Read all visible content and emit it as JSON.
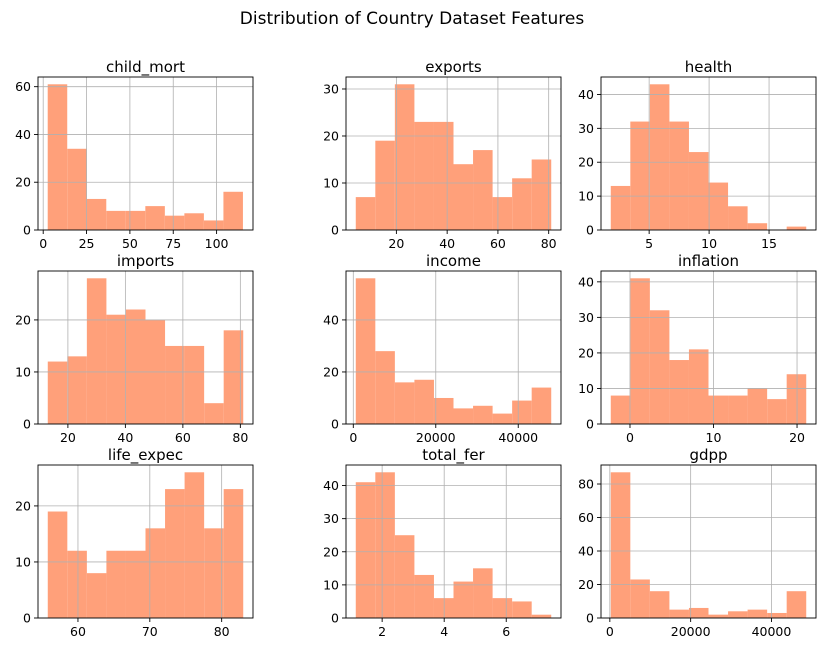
{
  "title": "Distribution of Country Dataset Features",
  "colors": {
    "bar": "#ffa07a",
    "grid": "#b0b0b0",
    "axis": "#000000"
  },
  "chart_data": [
    {
      "type": "bar",
      "title": "child_mort",
      "grid": true,
      "edges": [
        2.6,
        13.86,
        25.12,
        36.38,
        47.64,
        58.9,
        70.16,
        81.42,
        92.68,
        103.94,
        115.2
      ],
      "values": [
        61,
        34,
        13,
        8,
        8,
        10,
        6,
        7,
        4,
        16
      ],
      "xlim": [
        -3,
        121
      ],
      "ylim": [
        0,
        64.05
      ],
      "xticks": [
        0,
        25,
        50,
        75,
        100
      ],
      "yticks": [
        0,
        20,
        40,
        60
      ]
    },
    {
      "type": "bar",
      "title": "exports",
      "grid": true,
      "edges": [
        4.0,
        11.7,
        19.4,
        27.1,
        34.8,
        42.5,
        50.2,
        57.9,
        65.6,
        73.3,
        81.0
      ],
      "values": [
        7,
        19,
        31,
        23,
        23,
        14,
        17,
        7,
        11,
        15
      ],
      "xlim": [
        0.15,
        84.85
      ],
      "ylim": [
        0,
        32.55
      ],
      "xticks": [
        20,
        40,
        60,
        80
      ],
      "yticks": [
        0,
        10,
        20,
        30
      ]
    },
    {
      "type": "bar",
      "title": "health",
      "grid": true,
      "edges": [
        1.8,
        3.43,
        5.06,
        6.69,
        8.32,
        9.95,
        11.58,
        13.21,
        14.84,
        16.47,
        18.1
      ],
      "values": [
        13,
        32,
        43,
        32,
        23,
        14,
        7,
        2,
        0,
        1
      ],
      "xlim": [
        0.985,
        18.915
      ],
      "ylim": [
        0,
        45.15
      ],
      "xticks": [
        5,
        10,
        15
      ],
      "yticks": [
        0,
        10,
        20,
        30,
        40
      ]
    },
    {
      "type": "bar",
      "title": "imports",
      "grid": true,
      "edges": [
        13.0,
        19.8,
        26.6,
        33.4,
        40.2,
        47.0,
        53.8,
        60.6,
        67.4,
        74.2,
        81.0
      ],
      "values": [
        12,
        13,
        28,
        21,
        22,
        20,
        15,
        15,
        4,
        18
      ],
      "xlim": [
        9.6,
        84.4
      ],
      "ylim": [
        0,
        29.4
      ],
      "xticks": [
        20,
        40,
        60,
        80
      ],
      "yticks": [
        0,
        10,
        20
      ]
    },
    {
      "type": "bar",
      "title": "income",
      "grid": true,
      "edges": [
        600,
        5340,
        10080,
        14820,
        19560,
        24300,
        29040,
        33780,
        38520,
        43260,
        48000
      ],
      "values": [
        56,
        28,
        16,
        17,
        10,
        6,
        7,
        4,
        9,
        14
      ],
      "xlim": [
        -1770,
        50370
      ],
      "ylim": [
        0,
        58.8
      ],
      "xticks": [
        0,
        20000,
        40000
      ],
      "yticks": [
        0,
        20,
        40
      ]
    },
    {
      "type": "bar",
      "title": "inflation",
      "grid": true,
      "edges": [
        -2.3,
        0.04,
        2.38,
        4.72,
        7.06,
        9.4,
        11.74,
        14.08,
        16.42,
        18.76,
        21.1
      ],
      "values": [
        8,
        41,
        32,
        18,
        21,
        8,
        8,
        10,
        7,
        14
      ],
      "xlim": [
        -3.47,
        22.27
      ],
      "ylim": [
        0,
        43.05
      ],
      "xticks": [
        0,
        10,
        20
      ],
      "yticks": [
        0,
        10,
        20,
        30,
        40
      ]
    },
    {
      "type": "bar",
      "title": "life_expec",
      "grid": true,
      "edges": [
        55.8,
        58.52,
        61.24,
        63.96,
        66.68,
        69.4,
        72.12,
        74.84,
        77.56,
        80.28,
        83.0
      ],
      "values": [
        19,
        12,
        8,
        12,
        12,
        16,
        23,
        26,
        16,
        23
      ],
      "xlim": [
        54.44,
        84.36
      ],
      "ylim": [
        0,
        27.3
      ],
      "xticks": [
        60,
        70,
        80
      ],
      "yticks": [
        0,
        10,
        20
      ]
    },
    {
      "type": "bar",
      "title": "total_fer",
      "grid": true,
      "edges": [
        1.15,
        1.78,
        2.41,
        3.04,
        3.67,
        4.3,
        4.93,
        5.56,
        6.19,
        6.82,
        7.45
      ],
      "values": [
        41,
        44,
        25,
        13,
        6,
        11,
        15,
        6,
        5,
        1
      ],
      "xlim": [
        0.835,
        7.765
      ],
      "ylim": [
        0,
        46.2
      ],
      "xticks": [
        2,
        4,
        6
      ],
      "yticks": [
        0,
        10,
        20,
        30,
        40
      ]
    },
    {
      "type": "bar",
      "title": "gdpp",
      "grid": true,
      "edges": [
        231,
        5068,
        9905,
        14742,
        19579,
        24416,
        29253,
        34090,
        38927,
        43764,
        48601
      ],
      "values": [
        87,
        23,
        16,
        5,
        6,
        2,
        4,
        5,
        3,
        16
      ],
      "xlim": [
        -2187,
        51019
      ],
      "ylim": [
        0,
        91.35
      ],
      "xticks": [
        0,
        20000,
        40000
      ],
      "yticks": [
        0,
        20,
        40,
        60,
        80
      ]
    }
  ]
}
